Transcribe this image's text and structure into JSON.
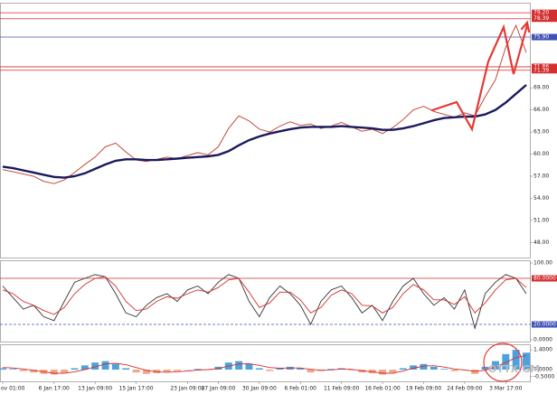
{
  "chart_data": [
    {
      "type": "line",
      "categories": [
        "ov 01:00",
        null,
        null,
        null,
        null,
        "6 Jan 17:00",
        null,
        null,
        null,
        "13 Jan 09:00",
        null,
        null,
        null,
        "15 Jan 17:00",
        null,
        null,
        null,
        null,
        "23 Jan 09:00",
        null,
        null,
        "27 Jan 09:00",
        null,
        null,
        null,
        "30 Jan 09:00",
        null,
        null,
        null,
        "6 Feb 01:00",
        null,
        null,
        null,
        "11 Feb 09:00",
        null,
        null,
        null,
        "16 Feb 01:00",
        null,
        null,
        null,
        "19 Feb 09:00",
        null,
        null,
        null,
        "24 Feb 09:00",
        null,
        null,
        null,
        "3 Mar 17:00",
        null,
        null
      ],
      "series": [
        {
          "color": "#c0392b",
          "values": [
            57.9,
            57.6,
            57.3,
            57.0,
            56.3,
            56.0,
            56.5,
            57.5,
            58.6,
            59.6,
            61.0,
            61.5,
            60.3,
            59.2,
            59.0,
            59.3,
            59.6,
            59.4,
            59.8,
            60.2,
            59.9,
            61.0,
            63.5,
            65.2,
            64.5,
            63.4,
            63.0,
            63.8,
            64.4,
            63.9,
            64.1,
            63.5,
            63.8,
            64.3,
            63.7,
            63.1,
            63.4,
            62.8,
            63.6,
            64.7,
            66.0,
            66.5,
            65.8,
            65.4,
            65.0,
            65.6,
            65.2,
            67.8,
            70.1,
            74.5,
            77.5,
            73.8
          ]
        },
        {
          "color": "#1a1a5e",
          "values": [
            58.3,
            58.1,
            57.8,
            57.5,
            57.2,
            56.9,
            56.8,
            57.0,
            57.4,
            58.0,
            58.6,
            59.1,
            59.3,
            59.3,
            59.2,
            59.2,
            59.3,
            59.4,
            59.5,
            59.6,
            59.7,
            59.9,
            60.4,
            61.2,
            61.9,
            62.4,
            62.8,
            63.1,
            63.4,
            63.6,
            63.7,
            63.7,
            63.7,
            63.8,
            63.7,
            63.6,
            63.5,
            63.3,
            63.3,
            63.5,
            63.8,
            64.2,
            64.6,
            64.9,
            65.0,
            65.1,
            65.1,
            65.4,
            66.0,
            67.0,
            68.2,
            69.4
          ]
        }
      ],
      "ylim": [
        46.2,
        80.2
      ],
      "yticks": [
        {
          "value": 48,
          "label": "48.00"
        },
        {
          "value": 51,
          "label": "51.00"
        },
        {
          "value": 54,
          "label": "54.00"
        },
        {
          "value": 57,
          "label": "57.00"
        },
        {
          "value": 60,
          "label": "60.00"
        },
        {
          "value": 63,
          "label": "63.00"
        },
        {
          "value": 66,
          "label": "66.00"
        },
        {
          "value": 69,
          "label": "69.00"
        }
      ],
      "hlines": [
        {
          "value": 79.2,
          "label": "79.20",
          "color": "#d32f2f"
        },
        {
          "value": 78.39,
          "label": "78.39",
          "color": "#d32f2f"
        },
        {
          "value": 75.9,
          "label": "75.90",
          "color": "#3f51b5"
        },
        {
          "value": 71.86,
          "label": "71.86",
          "color": "#d32f2f"
        },
        {
          "value": 71.39,
          "label": "71.39",
          "color": "#d32f2f"
        }
      ],
      "watermark": "OTTX.GM"
    },
    {
      "type": "line",
      "series": [
        {
          "color": "#333333",
          "values": [
            70,
            55,
            40,
            45,
            30,
            25,
            50,
            75,
            80,
            85,
            82,
            60,
            35,
            30,
            45,
            55,
            60,
            50,
            65,
            70,
            60,
            75,
            85,
            80,
            50,
            30,
            55,
            70,
            60,
            45,
            20,
            50,
            65,
            70,
            55,
            35,
            45,
            25,
            50,
            70,
            80,
            60,
            45,
            55,
            40,
            65,
            15,
            60,
            75,
            85,
            80,
            60
          ]
        },
        {
          "color": "#d32f2f",
          "values": [
            65,
            60,
            50,
            45,
            38,
            33,
            42,
            60,
            72,
            80,
            82,
            70,
            50,
            38,
            40,
            50,
            56,
            54,
            60,
            65,
            62,
            68,
            78,
            80,
            62,
            42,
            48,
            62,
            62,
            52,
            35,
            42,
            58,
            65,
            60,
            45,
            44,
            35,
            42,
            60,
            72,
            65,
            52,
            52,
            46,
            56,
            35,
            48,
            65,
            78,
            80,
            68
          ]
        }
      ],
      "ylim": [
        0,
        100
      ],
      "yticks": [
        {
          "value": 100,
          "label": "100.00"
        },
        {
          "value": 0,
          "label": "0.0000"
        }
      ],
      "hlines": [
        {
          "value": 80,
          "label": "80.0000",
          "color": "#d32f2f"
        },
        {
          "value": 20,
          "label": "20.0000",
          "color": "#3f51b5"
        }
      ]
    },
    {
      "type": "bar",
      "values": [
        0.1,
        0.05,
        -0.1,
        -0.2,
        -0.3,
        -0.35,
        -0.2,
        0.1,
        0.3,
        0.5,
        0.6,
        0.4,
        0.1,
        -0.2,
        -0.3,
        -0.25,
        -0.15,
        -0.1,
        0,
        0.05,
        0,
        0.2,
        0.5,
        0.6,
        0.4,
        0.1,
        -0.1,
        0.1,
        0.2,
        0.1,
        -0.2,
        -0.1,
        0.05,
        0.1,
        -0.05,
        -0.2,
        -0.25,
        -0.35,
        -0.2,
        0.1,
        0.3,
        0.4,
        0.2,
        0.05,
        -0.1,
        -0.05,
        -0.3,
        0.2,
        0.6,
        1.1,
        1.4,
        1.2
      ],
      "pos_color": "#4aa3df",
      "neg_color": "#f4a582",
      "series": [
        {
          "color": "#d32f2f",
          "values": [
            0.15,
            0.12,
            0.05,
            -0.05,
            -0.15,
            -0.25,
            -0.25,
            -0.15,
            0,
            0.2,
            0.4,
            0.45,
            0.35,
            0.15,
            -0.05,
            -0.15,
            -0.18,
            -0.15,
            -0.1,
            -0.03,
            0,
            0.08,
            0.25,
            0.4,
            0.42,
            0.3,
            0.15,
            0.1,
            0.12,
            0.12,
            0.02,
            -0.05,
            -0.02,
            0.05,
            0.02,
            -0.08,
            -0.15,
            -0.25,
            -0.25,
            -0.1,
            0.1,
            0.25,
            0.28,
            0.18,
            0.05,
            -0.02,
            -0.12,
            -0.05,
            0.2,
            0.5,
            0.85,
            1.0
          ]
        }
      ],
      "ylim": [
        -0.7,
        1.6
      ],
      "yticks": [
        {
          "value": 1.4,
          "label": "1.4000"
        },
        {
          "value": 0,
          "label": "0.0000"
        },
        {
          "value": -0.5,
          "label": "-0.5000"
        }
      ]
    }
  ]
}
